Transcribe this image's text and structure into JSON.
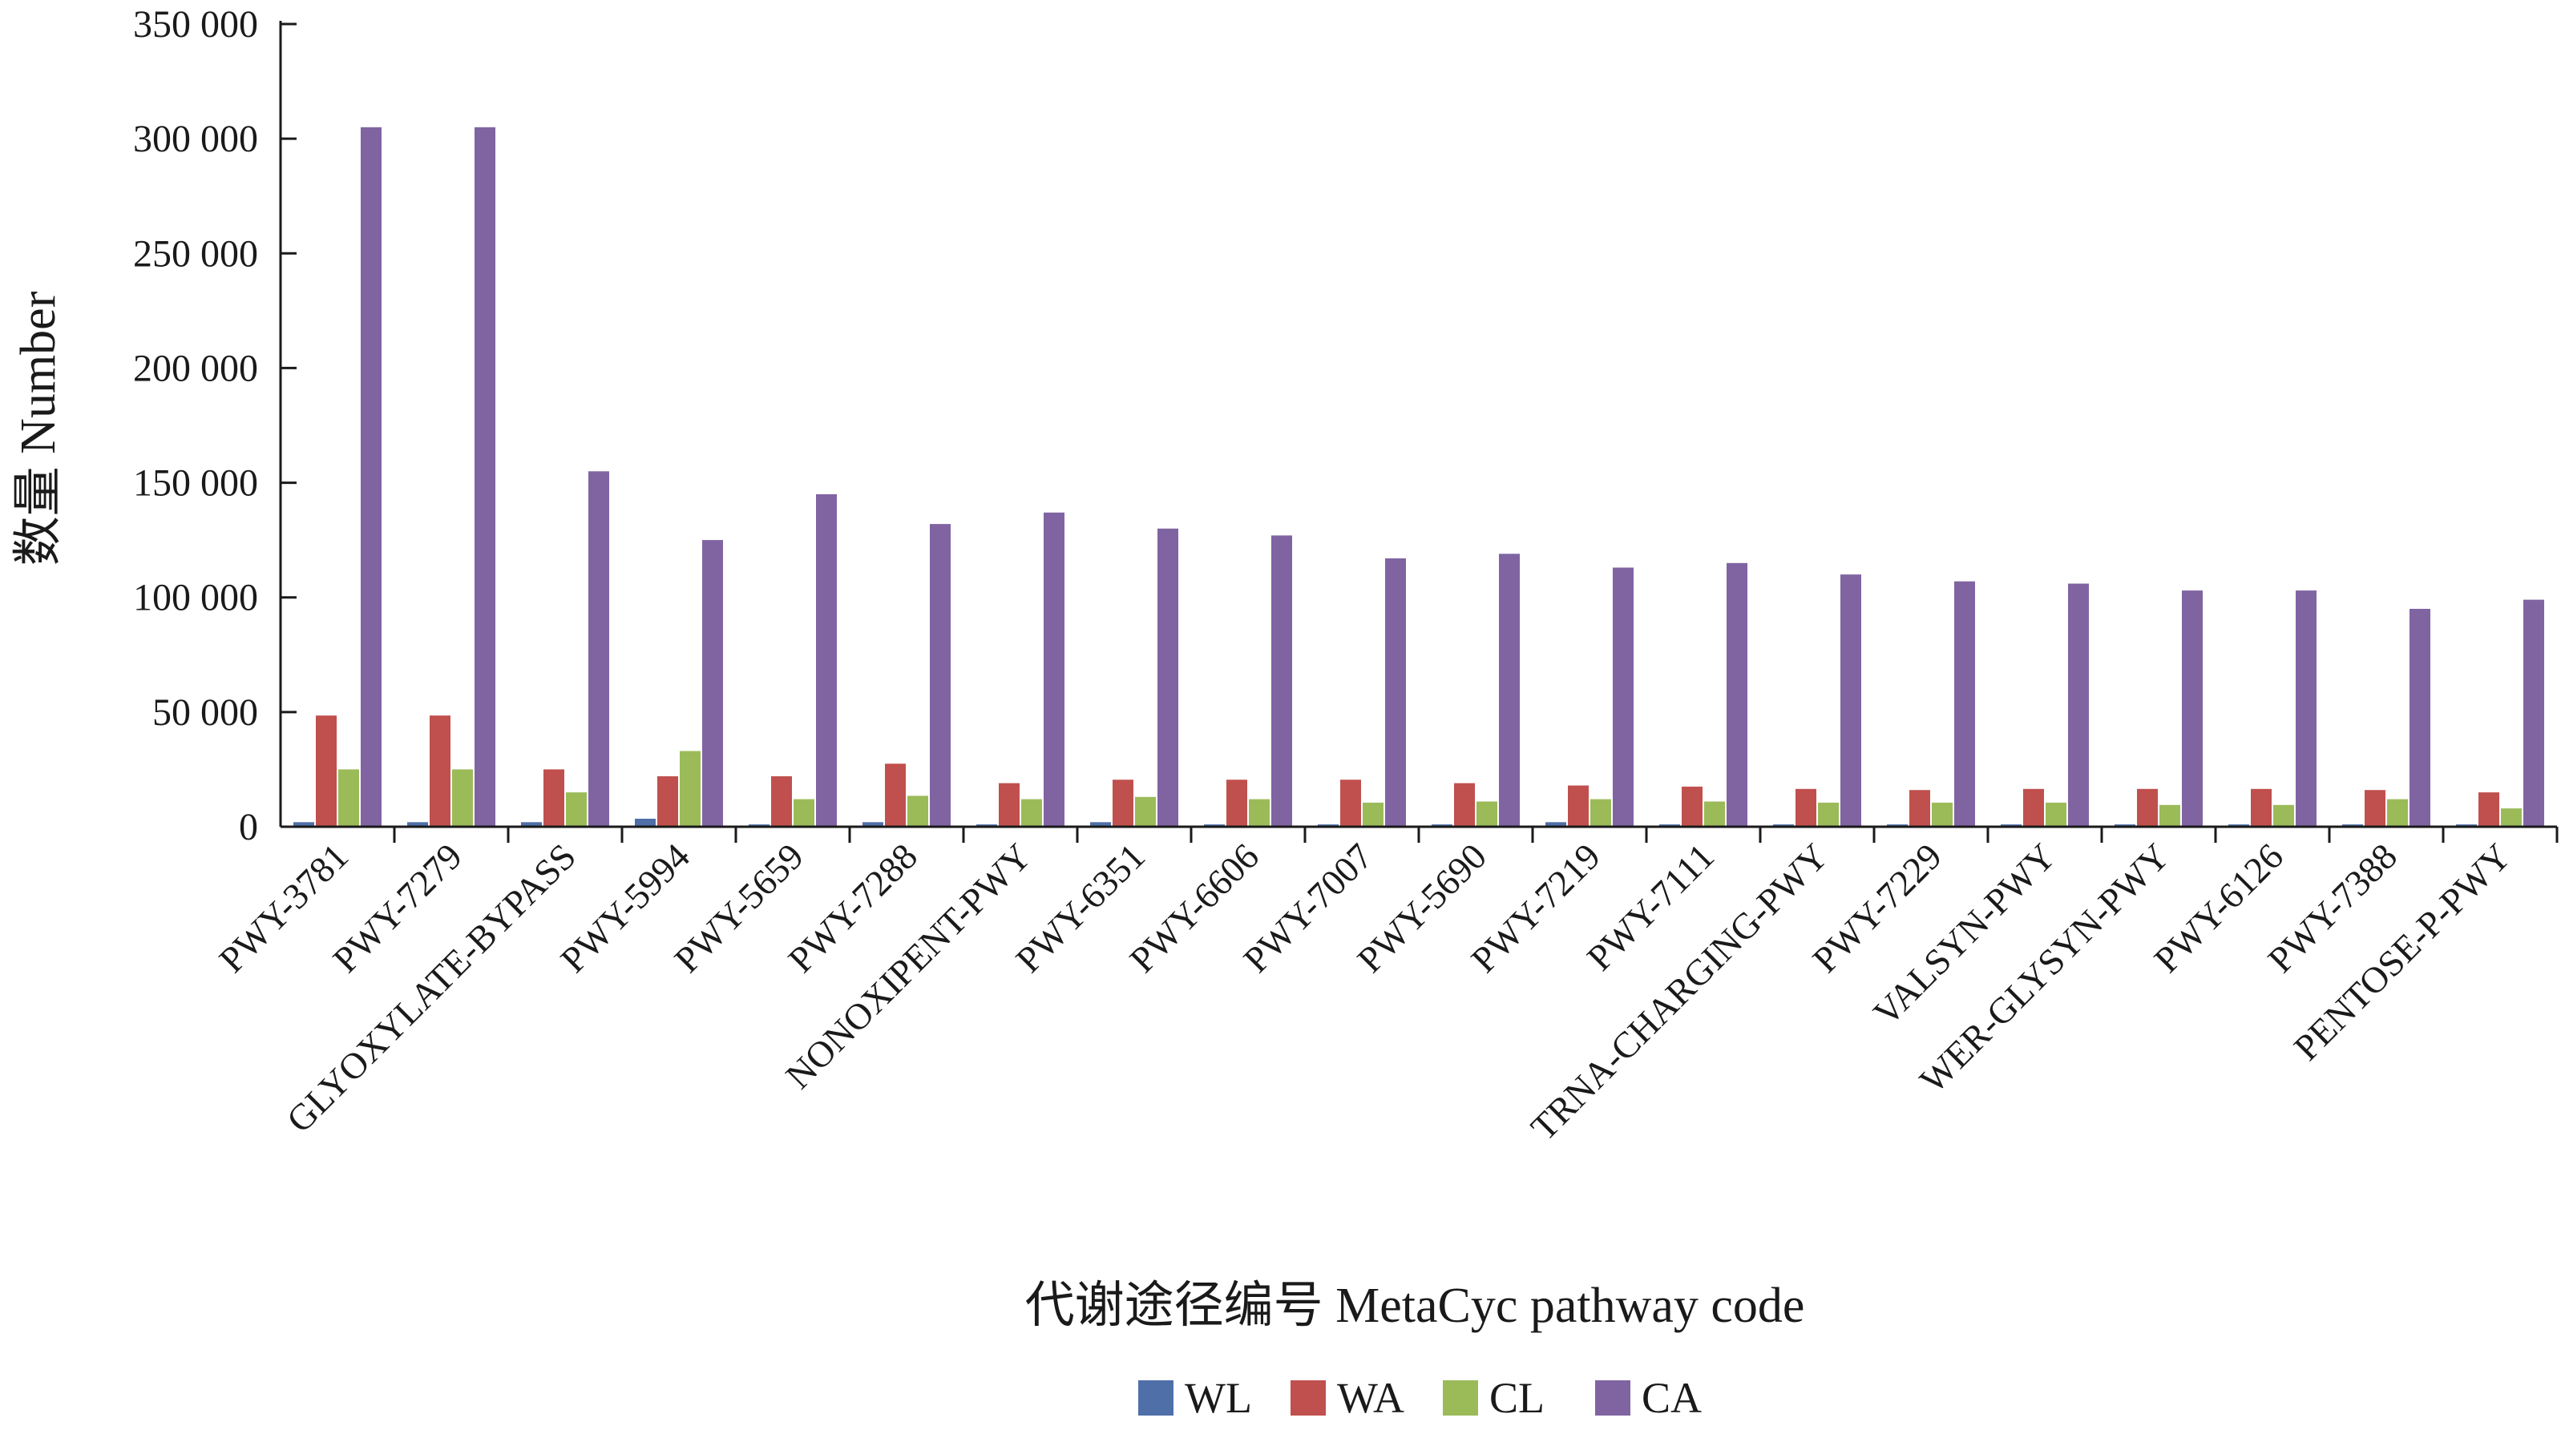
{
  "chart_data": {
    "type": "bar",
    "title": "",
    "xlabel": "代谢途径编号  MetaCyc pathway code",
    "ylabel": "数量  Number",
    "ylim": [
      0,
      350000
    ],
    "yticks": [
      0,
      50000,
      100000,
      150000,
      200000,
      250000,
      300000,
      350000
    ],
    "ytick_labels": [
      "0",
      "50 000",
      "100 000",
      "150 000",
      "200 000",
      "250 000",
      "300 000",
      "350 000"
    ],
    "grid": false,
    "legend_position": "bottom-center",
    "categories": [
      "PWY-3781",
      "PWY-7279",
      "GLYOXYLATE-BYPASS",
      "PWY-5994",
      "PWY-5659",
      "PWY-7288",
      "NONOXIPENT-PWY",
      "PWY-6351",
      "PWY-6606",
      "PWY-7007",
      "PWY-5690",
      "PWY-7219",
      "PWY-7111",
      "TRNA-CHARGING-PWY",
      "PWY-7229",
      "VALSYN-PWY",
      "WER-GLYSYN-PWY",
      "PWY-6126",
      "PWY-7388",
      "PENTOSE-P-PWY"
    ],
    "series": [
      {
        "name": "WL",
        "color": "#4f6fa8",
        "values": [
          2000,
          2000,
          2000,
          3500,
          1000,
          2000,
          1000,
          2000,
          1000,
          1000,
          1000,
          2000,
          1000,
          1000,
          1000,
          1000,
          1000,
          1000,
          1000,
          1000
        ]
      },
      {
        "name": "WA",
        "color": "#c0504d",
        "values": [
          48500,
          48500,
          25000,
          22000,
          22000,
          27500,
          19000,
          20500,
          20500,
          20500,
          19000,
          18000,
          17500,
          16500,
          16000,
          16500,
          16500,
          16500,
          16000,
          15000
        ]
      },
      {
        "name": "CL",
        "color": "#9bbb59",
        "values": [
          25000,
          25000,
          15000,
          33000,
          12000,
          13500,
          12000,
          13000,
          12000,
          10500,
          11000,
          12000,
          11000,
          10500,
          10500,
          10500,
          9500,
          9500,
          12000,
          8000
        ]
      },
      {
        "name": "CA",
        "color": "#8064a2",
        "values": [
          305000,
          305000,
          155000,
          125000,
          145000,
          132000,
          137000,
          130000,
          127000,
          117000,
          119000,
          113000,
          115000,
          110000,
          107000,
          106000,
          103000,
          103000,
          95000,
          99000
        ]
      }
    ]
  }
}
